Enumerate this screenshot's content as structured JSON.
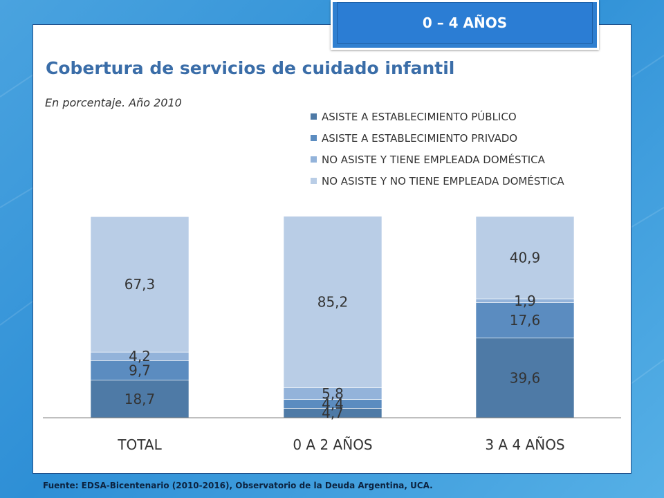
{
  "badge": {
    "label": "0 – 4 AÑOS"
  },
  "chart_data": {
    "type": "bar",
    "stacked": true,
    "title": "Cobertura de servicios de cuidado infantil",
    "subtitle": "En porcentaje. Año 2010",
    "categories": [
      "TOTAL",
      "0 A 2 AÑOS",
      "3 A 4 AÑOS"
    ],
    "series": [
      {
        "name": "ASISTE A ESTABLECIMIENTO PÚBLICO",
        "color": "#4e7aa6",
        "values": [
          18.7,
          4.7,
          39.6
        ]
      },
      {
        "name": "ASISTE A ESTABLECIMIENTO PRIVADO",
        "color": "#5b8cc0",
        "values": [
          9.7,
          4.4,
          17.6
        ]
      },
      {
        "name": "NO ASISTE Y TIENE EMPLEADA DOMÉSTICA",
        "color": "#93b3da",
        "values": [
          4.2,
          5.8,
          1.9
        ]
      },
      {
        "name": "NO ASISTE Y NO TIENE EMPLEADA DOMÉSTICA",
        "color": "#b9cde6",
        "values": [
          67.3,
          85.2,
          40.9
        ]
      }
    ],
    "data_labels": [
      [
        "18,7",
        "4,7",
        "39,6"
      ],
      [
        "9,7",
        "4,4",
        "17,6"
      ],
      [
        "4,2",
        "5,8",
        "1,9"
      ],
      [
        "67,3",
        "85,2",
        "40,9"
      ]
    ],
    "ylim": [
      0,
      100
    ],
    "grid": false,
    "legend_position": "top-right",
    "xlabel": "",
    "ylabel": ""
  },
  "footer": {
    "source": "Fuente: EDSA-Bicentenario (2010-2016), Observatorio de la Deuda Argentina, UCA."
  }
}
